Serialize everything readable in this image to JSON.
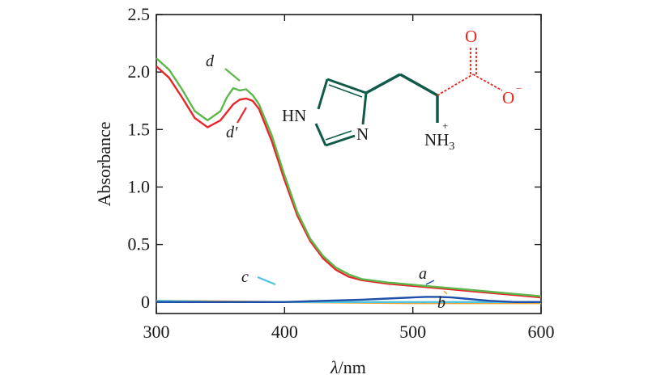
{
  "chart_data": {
    "type": "line",
    "xlabel_symbol": "λ",
    "xlabel_unit": "/nm",
    "ylabel": "Absorbance",
    "xlim": [
      300,
      600
    ],
    "ylim": [
      -0.1,
      2.5
    ],
    "x_ticks": [
      300,
      400,
      500,
      600
    ],
    "x_tick_labels": [
      "300",
      "400",
      "500",
      "600"
    ],
    "y_ticks": [
      0,
      0.5,
      1.0,
      1.5,
      2.0,
      2.5
    ],
    "y_tick_labels": [
      "0",
      "0.5",
      "1.0",
      "1.5",
      "2.0",
      "2.5"
    ],
    "grid": false,
    "series": [
      {
        "name": "d",
        "color": "#5cb84a",
        "x": [
          300,
          310,
          320,
          330,
          340,
          350,
          355,
          360,
          365,
          370,
          375,
          380,
          390,
          400,
          410,
          420,
          430,
          440,
          450,
          460,
          480,
          500,
          520,
          540,
          560,
          580,
          600
        ],
        "y": [
          2.12,
          2.02,
          1.85,
          1.66,
          1.58,
          1.66,
          1.78,
          1.86,
          1.84,
          1.85,
          1.8,
          1.72,
          1.45,
          1.1,
          0.78,
          0.55,
          0.4,
          0.3,
          0.24,
          0.2,
          0.17,
          0.15,
          0.13,
          0.11,
          0.09,
          0.07,
          0.05
        ]
      },
      {
        "name": "d′",
        "color": "#e8262a",
        "x": [
          300,
          310,
          320,
          330,
          340,
          350,
          360,
          365,
          370,
          375,
          380,
          390,
          400,
          410,
          420,
          430,
          440,
          450,
          460,
          480,
          500,
          520,
          540,
          560,
          580,
          600
        ],
        "y": [
          2.05,
          1.95,
          1.78,
          1.6,
          1.52,
          1.58,
          1.72,
          1.76,
          1.77,
          1.75,
          1.68,
          1.4,
          1.06,
          0.75,
          0.53,
          0.38,
          0.28,
          0.22,
          0.19,
          0.16,
          0.14,
          0.12,
          0.1,
          0.08,
          0.06,
          0.04
        ]
      },
      {
        "name": "a",
        "color": "#1f4fa8",
        "x": [
          300,
          350,
          400,
          430,
          460,
          480,
          500,
          510,
          520,
          530,
          540,
          560,
          580,
          600
        ],
        "y": [
          0.0,
          0.0,
          0.0,
          0.01,
          0.02,
          0.03,
          0.04,
          0.045,
          0.045,
          0.04,
          0.03,
          0.01,
          0.0,
          0.0
        ]
      },
      {
        "name": "b",
        "color": "#e8a23a",
        "x": [
          300,
          400,
          500,
          600
        ],
        "y": [
          0.01,
          0.0,
          -0.01,
          -0.01
        ]
      },
      {
        "name": "c",
        "color": "#4fc3dc",
        "x": [
          300,
          350,
          400,
          450,
          500,
          550,
          600
        ],
        "y": [
          0.01,
          0.0,
          0.0,
          0.0,
          0.0,
          0.0,
          0.0
        ]
      }
    ],
    "annotations": {
      "d": "d",
      "d_prime": "d′",
      "a": "a",
      "b": "b",
      "c": "c"
    },
    "molecule": {
      "hn": "HN",
      "n": "N",
      "nh": "NH",
      "nh_sub": "3",
      "nh_sup": "+",
      "o_top": "O",
      "o_minus": "O",
      "o_minus_sup": "−"
    },
    "colors": {
      "axis": "#1a1a1a",
      "molecule_bond": "#0f5a48",
      "carboxylate": "#e8261f"
    }
  }
}
